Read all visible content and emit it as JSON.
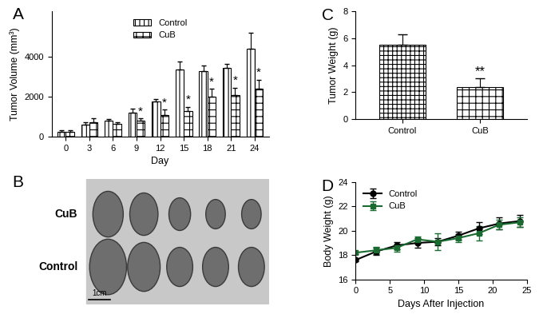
{
  "chart_data": [
    {
      "panel": "A",
      "type": "bar",
      "categories": [
        "0",
        "3",
        "6",
        "9",
        "12",
        "15",
        "18",
        "21",
        "24"
      ],
      "x_label": "Day",
      "y_label": "Tumor Volume (mm³)",
      "ylim": [
        0,
        6300
      ],
      "yticks": [
        0,
        2000,
        4000
      ],
      "legend": "upper center",
      "series": [
        {
          "name": "Control",
          "color": "#ffffff",
          "values": [
            250,
            600,
            800,
            1200,
            1750,
            3350,
            3300,
            3450,
            4400
          ],
          "errors": [
            50,
            100,
            80,
            200,
            150,
            400,
            250,
            200,
            800
          ],
          "significance": [
            null,
            null,
            null,
            null,
            null,
            null,
            null,
            null,
            null
          ]
        },
        {
          "name": "CuB",
          "color": "#ffffff",
          "values": [
            250,
            700,
            650,
            800,
            1100,
            1300,
            2000,
            2100,
            2400
          ],
          "errors": [
            50,
            200,
            80,
            100,
            250,
            200,
            400,
            350,
            450
          ],
          "significance": [
            null,
            null,
            null,
            "*",
            "*",
            "*",
            "*",
            "*",
            "*"
          ]
        }
      ]
    },
    {
      "panel": "B",
      "type": "image",
      "row_labels": [
        "CuB",
        "Control"
      ],
      "tumor_counts": [
        5,
        5
      ],
      "scale_bar": "1cm"
    },
    {
      "panel": "C",
      "type": "bar",
      "categories": [
        "Control",
        "CuB"
      ],
      "y_label": "Tumor Weight (g)",
      "ylim": [
        0,
        8
      ],
      "yticks": [
        0,
        2,
        4,
        6,
        8
      ],
      "values": [
        5.5,
        2.4
      ],
      "errors": [
        0.75,
        0.6
      ],
      "significance": [
        null,
        "**"
      ],
      "color": "#ffffff"
    },
    {
      "panel": "D",
      "type": "line",
      "x_label": "Days After Injection",
      "y_label": "Body Weight (g)",
      "xlim": [
        0,
        25
      ],
      "xticks": [
        0,
        5,
        10,
        15,
        20,
        25
      ],
      "ylim": [
        16,
        24
      ],
      "yticks": [
        16,
        18,
        20,
        22,
        24
      ],
      "legend": "upper left",
      "x": [
        0,
        3,
        6,
        9,
        12,
        15,
        18,
        21,
        24
      ],
      "series": [
        {
          "name": "Control",
          "color": "#000000",
          "marker": "o",
          "values": [
            17.6,
            18.3,
            18.8,
            19.0,
            19.1,
            19.6,
            20.2,
            20.6,
            20.8
          ],
          "errors": [
            0.1,
            0.3,
            0.3,
            0.4,
            0.3,
            0.3,
            0.5,
            0.5,
            0.5
          ]
        },
        {
          "name": "CuB",
          "color": "#1a6b30",
          "marker": "s",
          "values": [
            18.2,
            18.4,
            18.6,
            19.3,
            19.1,
            19.4,
            19.8,
            20.5,
            20.7
          ],
          "errors": [
            0.1,
            0.3,
            0.3,
            0.2,
            0.7,
            0.3,
            0.6,
            0.4,
            0.4
          ]
        }
      ]
    }
  ]
}
